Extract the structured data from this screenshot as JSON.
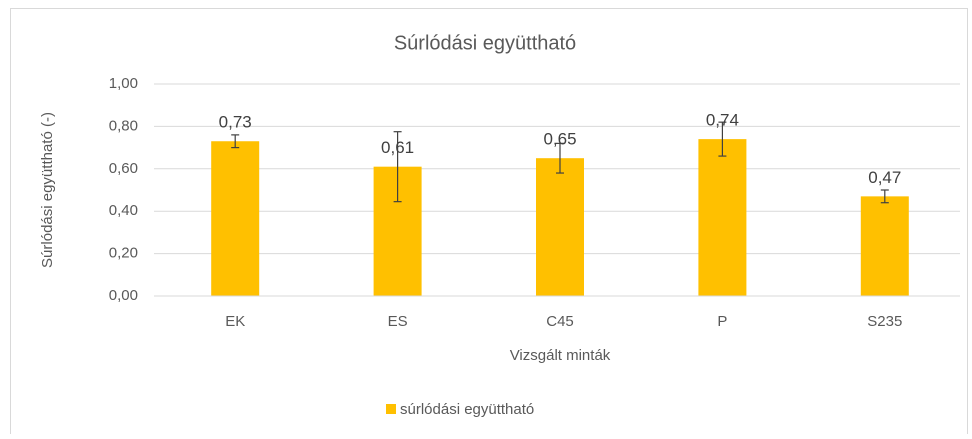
{
  "chart_data": {
    "type": "bar",
    "title": "Súrlódási együttható",
    "x_label": "Vizsgált minták",
    "y_label": "Súrlódási együttható  (-)",
    "categories": [
      "EK",
      "ES",
      "C45",
      "P",
      "S235"
    ],
    "series": [
      {
        "name": "súrlódási együttható",
        "color": "#ffc000",
        "values": [
          0.73,
          0.61,
          0.65,
          0.74,
          0.47
        ],
        "value_labels": [
          "0,73",
          "0,61",
          "0,65",
          "0,74",
          "0,47"
        ],
        "errors": [
          0.03,
          0.165,
          0.07,
          0.08,
          0.03
        ]
      }
    ],
    "ylim": [
      0,
      1
    ],
    "yticks": [
      {
        "value": 0,
        "label": "0,00"
      },
      {
        "value": 0.2,
        "label": "0,20"
      },
      {
        "value": 0.4,
        "label": "0,40"
      },
      {
        "value": 0.6,
        "label": "0,60"
      },
      {
        "value": 0.8,
        "label": "0,80"
      },
      {
        "value": 1,
        "label": "1,00"
      }
    ],
    "grid": true,
    "legend": "bottom"
  }
}
